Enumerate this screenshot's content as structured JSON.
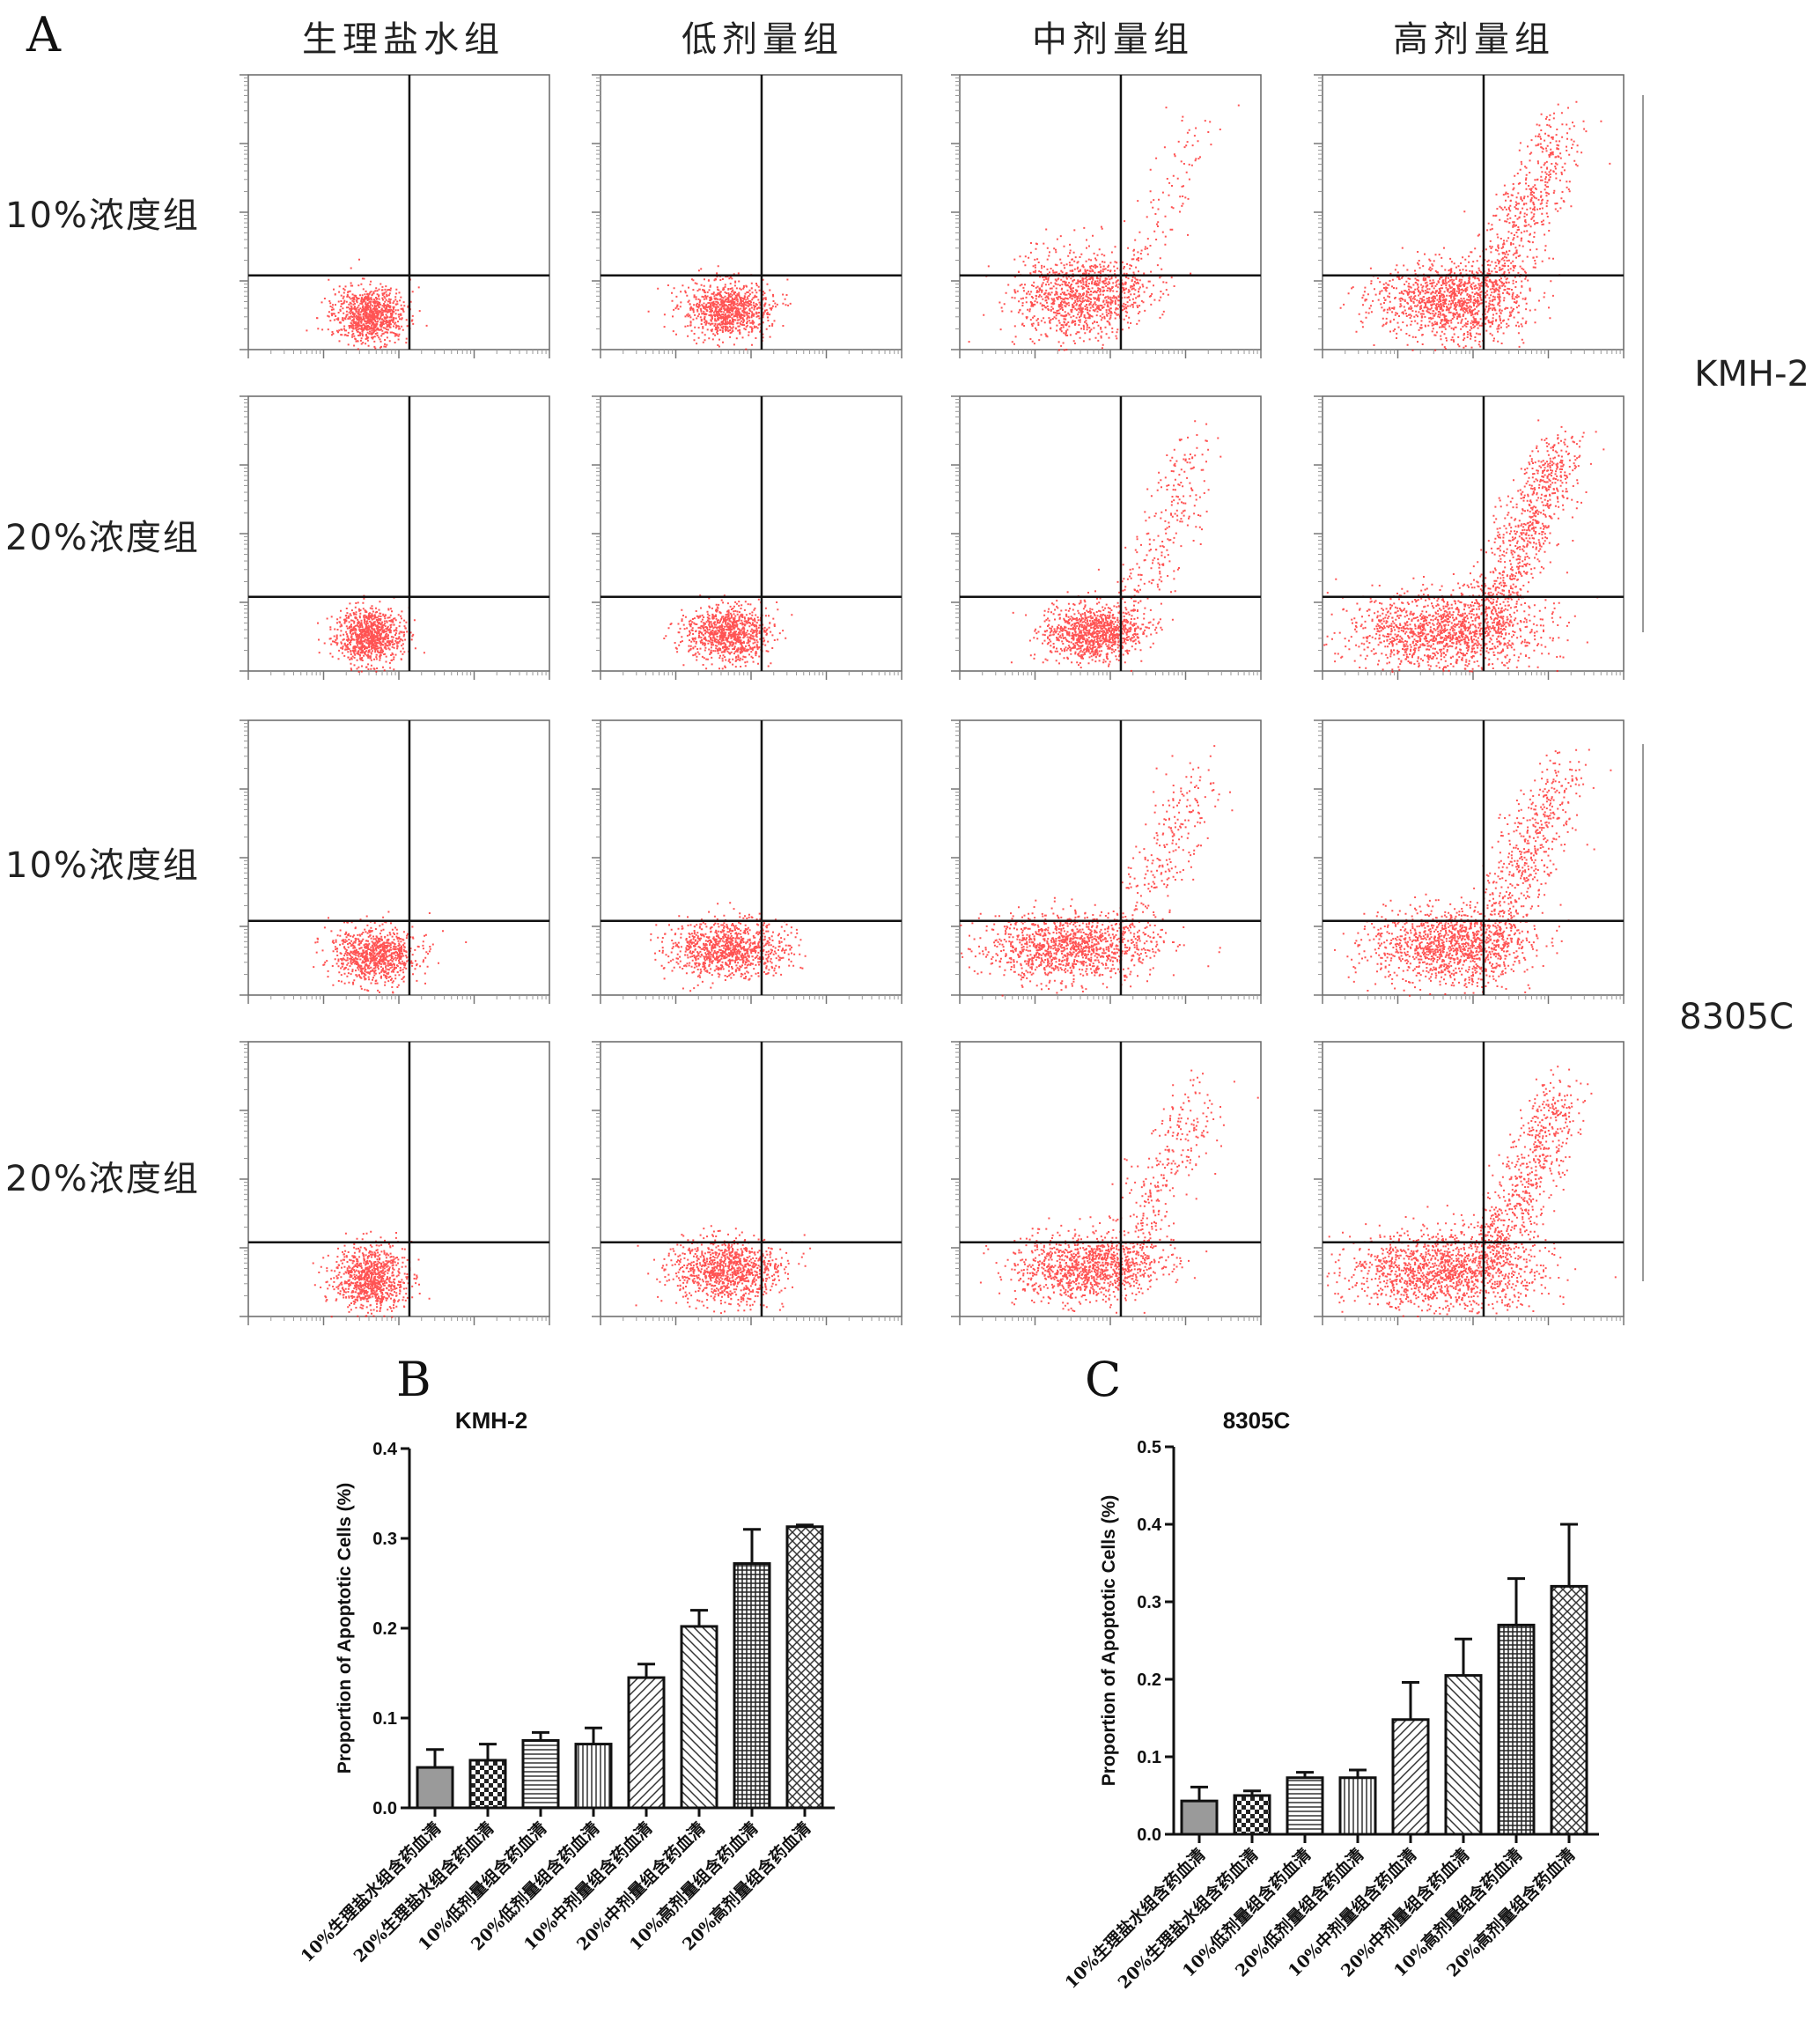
{
  "panel_labels": {
    "a": "A",
    "b": "B",
    "c": "C"
  },
  "flow_grid": {
    "column_headers": [
      "生理盐水组",
      "低剂量组",
      "中剂量组",
      "高剂量组"
    ],
    "row_labels": [
      "10%浓度组",
      "20%浓度组",
      "10%浓度组",
      "20%浓度组"
    ],
    "cell_line_labels": [
      "KMH-2",
      "8305C"
    ],
    "dot_color": "#ff1a1a"
  },
  "chart_data": [
    {
      "type": "bar",
      "title": "KMH-2",
      "ylabel": "Proportion of Apoptotic Cells (%)",
      "ylim": [
        0,
        0.4
      ],
      "yticks": [
        "0.0",
        "0.1",
        "0.2",
        "0.3",
        "0.4"
      ],
      "categories": [
        "10%生理盐水组含药血清",
        "20%生理盐水组含药血清",
        "10%低剂量组含药血清",
        "20%低剂量组含药血清",
        "10%中剂量组含药血清",
        "20%中剂量组含药血清",
        "10%高剂量组含药血清",
        "20%高剂量组含药血清"
      ],
      "values": [
        0.045,
        0.053,
        0.075,
        0.071,
        0.145,
        0.202,
        0.272,
        0.313
      ],
      "errors": [
        0.02,
        0.018,
        0.009,
        0.018,
        0.015,
        0.018,
        0.038,
        0.002
      ],
      "grid": false
    },
    {
      "type": "bar",
      "title": "8305C",
      "ylabel": "Proportion of Apoptotic Cells (%)",
      "ylim": [
        0,
        0.5
      ],
      "yticks": [
        "0.0",
        "0.1",
        "0.2",
        "0.3",
        "0.4",
        "0.5"
      ],
      "categories": [
        "10%生理盐水组含药血清",
        "20%生理盐水组含药血清",
        "10%低剂量组含药血清",
        "20%低剂量组含药血清",
        "10%中剂量组含药血清",
        "20%中剂量组含药血清",
        "10%高剂量组含药血清",
        "20%高剂量组含药血清"
      ],
      "values": [
        0.043,
        0.05,
        0.073,
        0.073,
        0.148,
        0.205,
        0.27,
        0.32
      ],
      "errors": [
        0.018,
        0.006,
        0.007,
        0.01,
        0.048,
        0.047,
        0.06,
        0.08
      ],
      "grid": false
    }
  ]
}
